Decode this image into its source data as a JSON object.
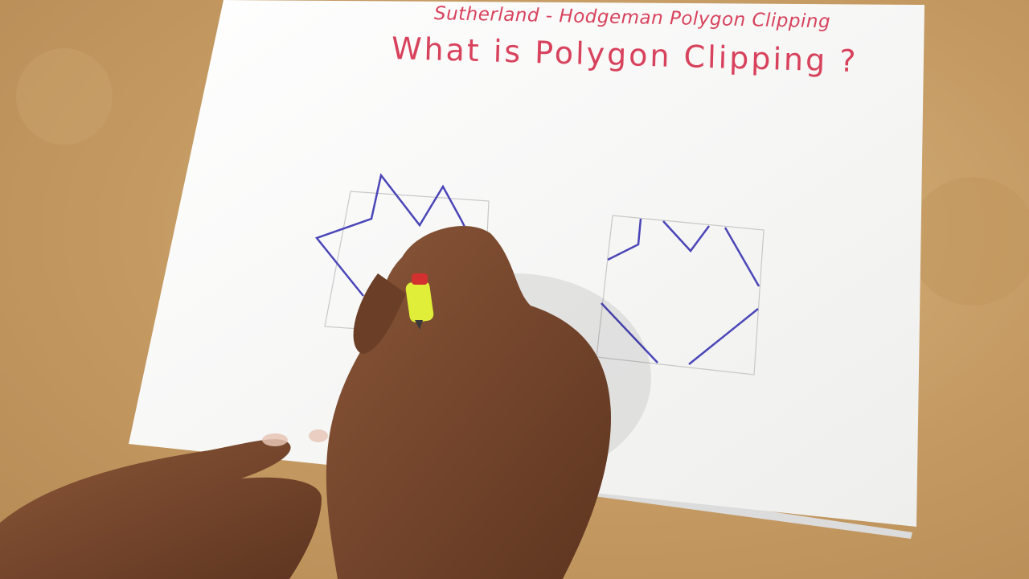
{
  "paper": {
    "heading_small": "Sutherland - Hodgeman Polygon Clipping",
    "heading_large": "What is Polygon Clipping ?"
  },
  "colors": {
    "table": "#c49a62",
    "paper": "#f7f7f5",
    "ink_red": "#d8425c",
    "ink_blue": "#4a46b8",
    "pencil_guide": "#c8c8c8",
    "skin": "#7a4a30",
    "marker_cap": "#e0ee3a"
  },
  "drawings": {
    "left_figure": "unclipped star polygon over clip window",
    "right_figure": "clipped polygon inside clip window"
  }
}
